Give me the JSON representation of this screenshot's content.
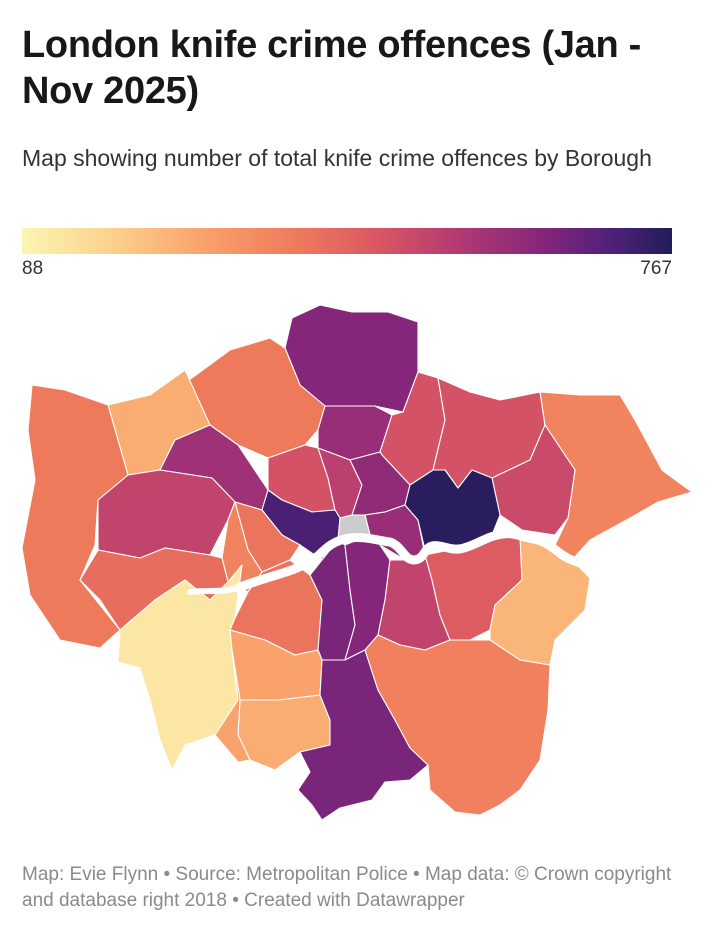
{
  "title": "London knife crime offences (Jan - Nov 2025)",
  "subtitle": "Map showing number of total knife crime offences by Borough",
  "legend": {
    "min_label": "88",
    "max_label": "767",
    "colors": [
      "#fbf5b3",
      "#fcd18b",
      "#f9a26b",
      "#ef7b5c",
      "#d95663",
      "#b33a72",
      "#85267a",
      "#53217a",
      "#221c59"
    ]
  },
  "map": {
    "no_data_color": "#cccccc",
    "river_color": "#ffffff",
    "boroughs": [
      {
        "id": "enfield",
        "level": 0.75
      },
      {
        "id": "barnet",
        "level": 0.38
      },
      {
        "id": "harrow",
        "level": 0.22
      },
      {
        "id": "hillingdon",
        "level": 0.38
      },
      {
        "id": "brent",
        "level": 0.68
      },
      {
        "id": "haringey",
        "level": 0.7
      },
      {
        "id": "waltham-forest",
        "level": 0.52
      },
      {
        "id": "redbridge",
        "level": 0.52
      },
      {
        "id": "havering",
        "level": 0.35
      },
      {
        "id": "barking-dagenham",
        "level": 0.55
      },
      {
        "id": "ealing",
        "level": 0.58
      },
      {
        "id": "camden",
        "level": 0.52
      },
      {
        "id": "islington",
        "level": 0.6
      },
      {
        "id": "hackney",
        "level": 0.72
      },
      {
        "id": "tower-hamlets",
        "level": 0.7
      },
      {
        "id": "newham",
        "level": 0.98
      },
      {
        "id": "westminster",
        "level": 0.9
      },
      {
        "id": "city-of-london",
        "level": null
      },
      {
        "id": "kensington-chelsea",
        "level": 0.4
      },
      {
        "id": "hammersmith-fulham",
        "level": 0.35
      },
      {
        "id": "hounslow",
        "level": 0.42
      },
      {
        "id": "richmond",
        "level": 0.05
      },
      {
        "id": "wandsworth",
        "level": 0.4
      },
      {
        "id": "lambeth",
        "level": 0.78
      },
      {
        "id": "southwark",
        "level": 0.75
      },
      {
        "id": "lewisham",
        "level": 0.58
      },
      {
        "id": "greenwich",
        "level": 0.48
      },
      {
        "id": "bexley",
        "level": 0.2
      },
      {
        "id": "kingston",
        "level": 0.25
      },
      {
        "id": "merton",
        "level": 0.22
      },
      {
        "id": "sutton",
        "level": 0.25
      },
      {
        "id": "croydon",
        "level": 0.78
      },
      {
        "id": "bromley",
        "level": 0.36
      }
    ]
  },
  "footer": {
    "text": "Map: Evie Flynn • Source: Metropolitan Police • Map data: © Crown copyright and database right 2018  • Created with Datawrapper"
  }
}
